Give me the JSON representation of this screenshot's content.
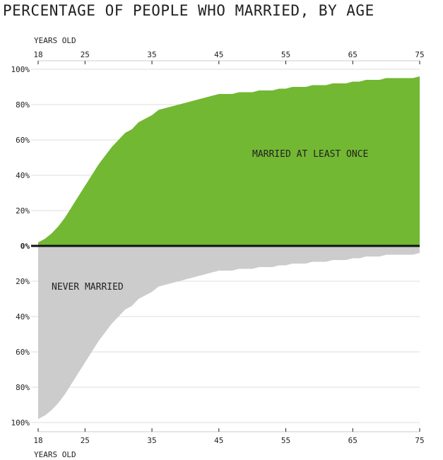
{
  "chart_data": {
    "type": "area",
    "title": "PERCENTAGE OF PEOPLE WHO MARRIED, BY AGE",
    "xlabel": "YEARS OLD",
    "x_ticks": [
      18,
      25,
      35,
      45,
      55,
      65,
      75
    ],
    "y_ticks_top": [
      "100%",
      "80%",
      "60%",
      "40%",
      "20%",
      "0%"
    ],
    "y_ticks_bottom": [
      "20%",
      "40%",
      "60%",
      "80%",
      "100%"
    ],
    "xlim": [
      18,
      75
    ],
    "ylim": [
      -100,
      100
    ],
    "grid": true,
    "colors": {
      "married": "#72b833",
      "never": "#cccccc",
      "baseline": "#111111"
    },
    "series": [
      {
        "name": "MARRIED AT LEAST ONCE",
        "sign": 1,
        "x": [
          18,
          19,
          20,
          21,
          22,
          23,
          24,
          25,
          26,
          27,
          28,
          29,
          30,
          31,
          32,
          33,
          34,
          35,
          36,
          37,
          38,
          39,
          40,
          41,
          42,
          43,
          44,
          45,
          46,
          47,
          48,
          49,
          50,
          51,
          52,
          53,
          54,
          55,
          56,
          57,
          58,
          59,
          60,
          61,
          62,
          63,
          64,
          65,
          66,
          67,
          68,
          69,
          70,
          71,
          72,
          73,
          74,
          75
        ],
        "values": [
          2,
          4,
          7,
          11,
          16,
          22,
          28,
          34,
          40,
          46,
          51,
          56,
          60,
          64,
          66,
          70,
          72,
          74,
          77,
          78,
          79,
          80,
          81,
          82,
          83,
          84,
          85,
          86,
          86,
          86,
          87,
          87,
          87,
          88,
          88,
          88,
          89,
          89,
          90,
          90,
          90,
          91,
          91,
          91,
          92,
          92,
          92,
          93,
          93,
          94,
          94,
          94,
          95,
          95,
          95,
          95,
          95,
          96
        ]
      },
      {
        "name": "NEVER MARRIED",
        "sign": -1,
        "x": [
          18,
          19,
          20,
          21,
          22,
          23,
          24,
          25,
          26,
          27,
          28,
          29,
          30,
          31,
          32,
          33,
          34,
          35,
          36,
          37,
          38,
          39,
          40,
          41,
          42,
          43,
          44,
          45,
          46,
          47,
          48,
          49,
          50,
          51,
          52,
          53,
          54,
          55,
          56,
          57,
          58,
          59,
          60,
          61,
          62,
          63,
          64,
          65,
          66,
          67,
          68,
          69,
          70,
          71,
          72,
          73,
          74,
          75
        ],
        "values": [
          98,
          96,
          93,
          89,
          84,
          78,
          72,
          66,
          60,
          54,
          49,
          44,
          40,
          36,
          34,
          30,
          28,
          26,
          23,
          22,
          21,
          20,
          19,
          18,
          17,
          16,
          15,
          14,
          14,
          14,
          13,
          13,
          13,
          12,
          12,
          12,
          11,
          11,
          10,
          10,
          10,
          9,
          9,
          9,
          8,
          8,
          8,
          7,
          7,
          6,
          6,
          6,
          5,
          5,
          5,
          5,
          5,
          4
        ]
      }
    ],
    "annotations": [
      "MARRIED AT LEAST ONCE",
      "NEVER MARRIED"
    ]
  }
}
